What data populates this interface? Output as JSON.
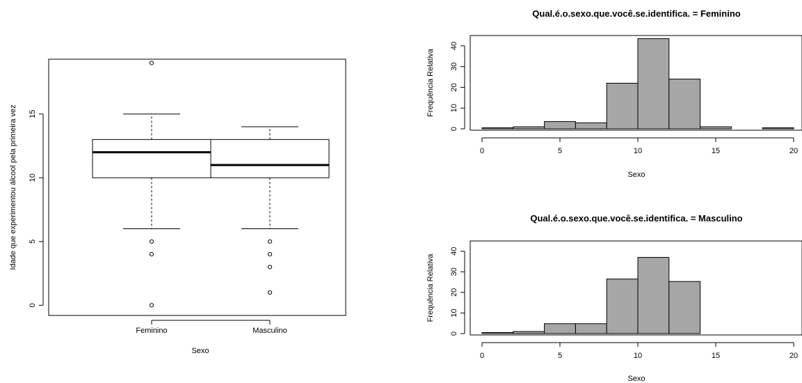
{
  "chart_data": [
    {
      "type": "box",
      "title": "",
      "xlabel": "Sexo",
      "ylabel": "Idade que experimentou álcool pela primeira vez",
      "ylim": [
        -0.8,
        19.3
      ],
      "yticks": [
        0,
        5,
        10,
        15
      ],
      "categories": [
        "Feminino",
        "Masculino"
      ],
      "boxes": [
        {
          "name": "Feminino",
          "whisker_low": 6,
          "q1": 10,
          "median": 12,
          "q3": 13,
          "whisker_high": 15,
          "outliers": [
            19,
            5,
            4,
            0
          ]
        },
        {
          "name": "Masculino",
          "whisker_low": 6,
          "q1": 10,
          "median": 11,
          "q3": 13,
          "whisker_high": 14,
          "outliers": [
            5,
            4,
            3,
            1
          ]
        }
      ]
    },
    {
      "type": "bar",
      "subtype": "histogram",
      "title": "Qual.é.o.sexo.que.você.se.identifica. = Feminino",
      "xlabel": "Sexo",
      "ylabel": "Frequência Relativa",
      "bin_edges": [
        0,
        2,
        4,
        6,
        8,
        10,
        12,
        14,
        16,
        18,
        20
      ],
      "values": [
        0.5,
        1.0,
        3.5,
        2.9,
        22.0,
        43.5,
        24.0,
        1.0,
        0,
        0.5
      ],
      "xticks": [
        0,
        5,
        10,
        15,
        20
      ],
      "yticks": [
        0,
        10,
        20,
        30,
        40
      ],
      "ylim": [
        0,
        45
      ],
      "bar_color": "#a6a6a6"
    },
    {
      "type": "bar",
      "subtype": "histogram",
      "title": "Qual.é.o.sexo.que.você.se.identifica. = Masculino",
      "xlabel": "Sexo",
      "ylabel": "Frequência Relativa",
      "bin_edges": [
        0,
        2,
        4,
        6,
        8,
        10,
        12,
        14,
        16,
        18,
        20
      ],
      "values": [
        0.5,
        1.0,
        4.8,
        4.8,
        26.5,
        37.0,
        25.3,
        0,
        0,
        0
      ],
      "xticks": [
        0,
        5,
        10,
        15,
        20
      ],
      "yticks": [
        0,
        10,
        20,
        30,
        40
      ],
      "ylim": [
        0,
        45
      ],
      "bar_color": "#a6a6a6"
    }
  ]
}
